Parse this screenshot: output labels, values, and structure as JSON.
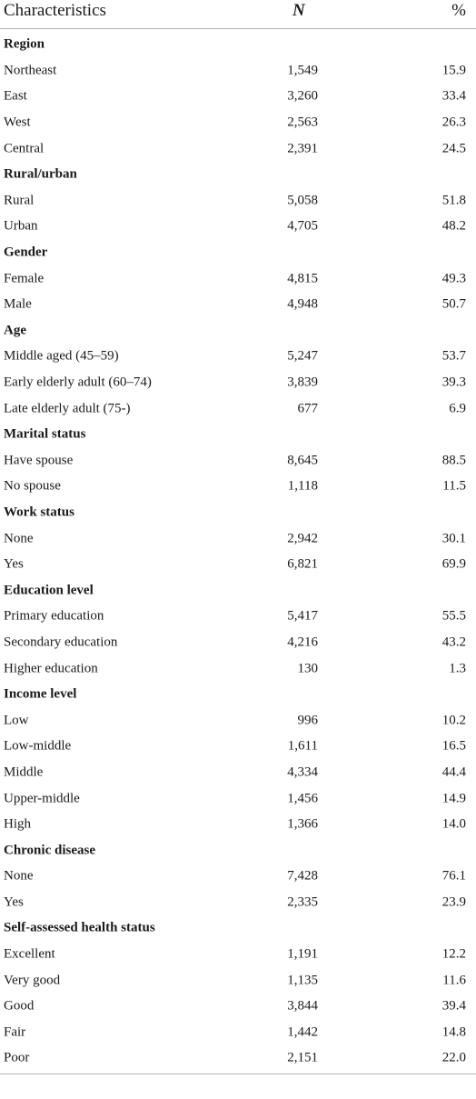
{
  "header": {
    "characteristics": "Characteristics",
    "n": "N",
    "pct": "%"
  },
  "rows": [
    {
      "type": "group",
      "label": "Region"
    },
    {
      "type": "item",
      "label": "Northeast",
      "n": "1,549",
      "pct": "15.9"
    },
    {
      "type": "item",
      "label": "East",
      "n": "3,260",
      "pct": "33.4"
    },
    {
      "type": "item",
      "label": "West",
      "n": "2,563",
      "pct": "26.3"
    },
    {
      "type": "item",
      "label": "Central",
      "n": "2,391",
      "pct": "24.5"
    },
    {
      "type": "group",
      "label": "Rural/urban"
    },
    {
      "type": "item",
      "label": "Rural",
      "n": "5,058",
      "pct": "51.8"
    },
    {
      "type": "item",
      "label": "Urban",
      "n": "4,705",
      "pct": "48.2"
    },
    {
      "type": "group",
      "label": "Gender"
    },
    {
      "type": "item",
      "label": "Female",
      "n": "4,815",
      "pct": "49.3"
    },
    {
      "type": "item",
      "label": "Male",
      "n": "4,948",
      "pct": "50.7"
    },
    {
      "type": "group",
      "label": "Age"
    },
    {
      "type": "item",
      "label": "Middle aged (45–59)",
      "n": "5,247",
      "pct": "53.7"
    },
    {
      "type": "item",
      "label": "Early elderly adult (60–74)",
      "n": "3,839",
      "pct": "39.3"
    },
    {
      "type": "item",
      "label": "Late elderly adult (75-)",
      "n": "677",
      "pct": "6.9"
    },
    {
      "type": "group",
      "label": "Marital status"
    },
    {
      "type": "item",
      "label": "Have spouse",
      "n": "8,645",
      "pct": "88.5"
    },
    {
      "type": "item",
      "label": "No spouse",
      "n": "1,118",
      "pct": "11.5"
    },
    {
      "type": "group",
      "label": "Work status"
    },
    {
      "type": "item",
      "label": "None",
      "n": "2,942",
      "pct": "30.1"
    },
    {
      "type": "item",
      "label": "Yes",
      "n": "6,821",
      "pct": "69.9"
    },
    {
      "type": "group",
      "label": "Education level"
    },
    {
      "type": "item",
      "label": "Primary education",
      "n": "5,417",
      "pct": "55.5"
    },
    {
      "type": "item",
      "label": "Secondary education",
      "n": "4,216",
      "pct": "43.2"
    },
    {
      "type": "item",
      "label": "Higher education",
      "n": "130",
      "pct": "1.3"
    },
    {
      "type": "group",
      "label": "Income level"
    },
    {
      "type": "item",
      "label": "Low",
      "n": "996",
      "pct": "10.2"
    },
    {
      "type": "item",
      "label": "Low-middle",
      "n": "1,611",
      "pct": "16.5"
    },
    {
      "type": "item",
      "label": "Middle",
      "n": "4,334",
      "pct": "44.4"
    },
    {
      "type": "item",
      "label": "Upper-middle",
      "n": "1,456",
      "pct": "14.9"
    },
    {
      "type": "item",
      "label": "High",
      "n": "1,366",
      "pct": "14.0"
    },
    {
      "type": "group",
      "label": "Chronic disease"
    },
    {
      "type": "item",
      "label": "None",
      "n": "7,428",
      "pct": "76.1"
    },
    {
      "type": "item",
      "label": "Yes",
      "n": "2,335",
      "pct": "23.9"
    },
    {
      "type": "group",
      "label": "Self-assessed health status"
    },
    {
      "type": "item",
      "label": "Excellent",
      "n": "1,191",
      "pct": "12.2"
    },
    {
      "type": "item",
      "label": "Very good",
      "n": "1,135",
      "pct": "11.6"
    },
    {
      "type": "item",
      "label": "Good",
      "n": "3,844",
      "pct": "39.4"
    },
    {
      "type": "item",
      "label": "Fair",
      "n": "1,442",
      "pct": "14.8"
    },
    {
      "type": "item",
      "label": "Poor",
      "n": "2,151",
      "pct": "22.0"
    }
  ]
}
